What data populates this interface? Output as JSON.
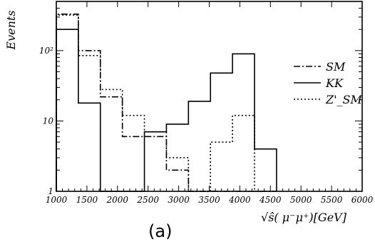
{
  "chart_data": {
    "type": "line",
    "step": true,
    "ylog": true,
    "xlim": [
      1000,
      6000
    ],
    "ylim": [
      1,
      500
    ],
    "xticks": [
      "1000",
      "1500",
      "2000",
      "2500",
      "3000",
      "3500",
      "4000",
      "4500",
      "5000",
      "5500",
      "6000"
    ],
    "yticks": [
      {
        "value": 1,
        "label": "1"
      },
      {
        "value": 10,
        "label": "10"
      },
      {
        "value": 100,
        "label": "10²"
      }
    ],
    "ylabel": "Events",
    "xlabel": "√ŝ( μ⁻μ⁺)[GeV]",
    "panel_label": "(a)",
    "legend_position": "right",
    "bin_edges": [
      1000,
      1360,
      1720,
      2080,
      2440,
      2800,
      3160,
      3520,
      3880,
      4240,
      4600
    ],
    "series": [
      {
        "name": "SM",
        "style": "dashdot",
        "values": [
          330,
          100,
          22,
          6,
          6,
          2,
          1,
          1,
          1,
          1
        ]
      },
      {
        "name": "KK",
        "style": "solid",
        "values": [
          200,
          18,
          1,
          1,
          7,
          9,
          19,
          48,
          90,
          4
        ]
      },
      {
        "name": "Z'_SM",
        "style": "dotted",
        "values": [
          320,
          85,
          28,
          12,
          7,
          3,
          1,
          5,
          12,
          1
        ]
      }
    ]
  }
}
